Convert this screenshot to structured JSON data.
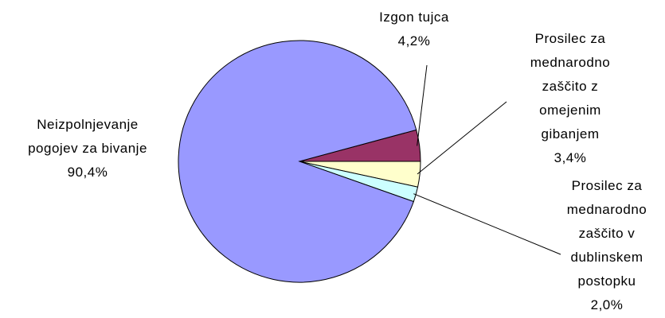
{
  "chart_data": {
    "type": "pie",
    "categories": [
      "Izgon tujca",
      "Prosilec za mednarodno zaščito z omejenim gibanjem",
      "Prosilec za mednarodno zaščito v dublinskem postopku",
      "Neizpolnjevanje pogojev za bivanje"
    ],
    "values": [
      4.2,
      3.4,
      2.0,
      90.4
    ],
    "value_labels": [
      "4,2%",
      "3,4%",
      "2,0%",
      "90,4%"
    ],
    "colors": [
      "#993366",
      "#ffffcc",
      "#ccffff",
      "#9999ff"
    ]
  }
}
